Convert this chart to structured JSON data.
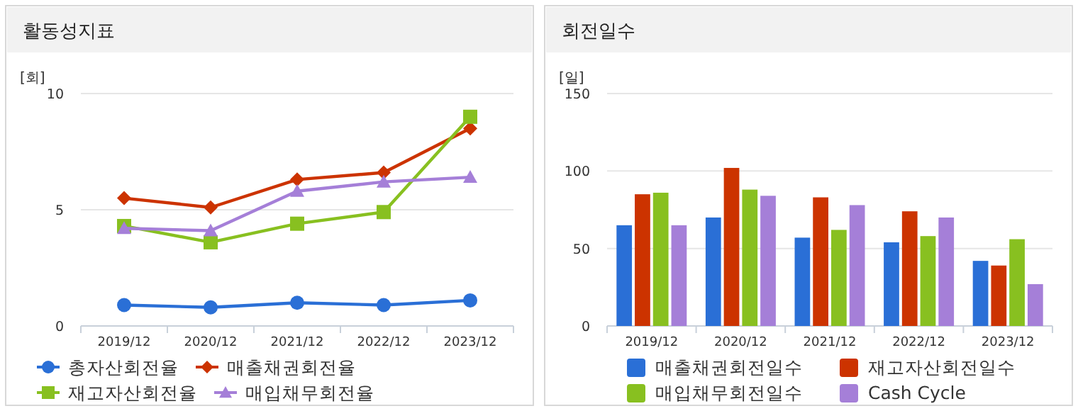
{
  "chart_data": [
    {
      "type": "line",
      "title": "활동성지표",
      "ylabel": "[회]",
      "categories": [
        "2019/12",
        "2020/12",
        "2021/12",
        "2022/12",
        "2023/12"
      ],
      "ylim": [
        0,
        10
      ],
      "yticks": [
        0,
        5,
        10
      ],
      "grid": "y",
      "legend": "bottom",
      "series": [
        {
          "name": "총자산회전율",
          "color": "#2a6fd6",
          "marker": "circle",
          "values": [
            0.9,
            0.8,
            1.0,
            0.9,
            1.1
          ]
        },
        {
          "name": "매출채권회전율",
          "color": "#cc3300",
          "marker": "diamond",
          "values": [
            5.5,
            5.1,
            6.3,
            6.6,
            8.5
          ]
        },
        {
          "name": "재고자산회전율",
          "color": "#88c020",
          "marker": "square",
          "values": [
            4.3,
            3.6,
            4.4,
            4.9,
            9.0
          ]
        },
        {
          "name": "매입채무회전율",
          "color": "#a57fd8",
          "marker": "triangle",
          "values": [
            4.2,
            4.1,
            5.8,
            6.2,
            6.4
          ]
        }
      ]
    },
    {
      "type": "bar",
      "title": "회전일수",
      "ylabel": "[일]",
      "categories": [
        "2019/12",
        "2020/12",
        "2021/12",
        "2022/12",
        "2023/12"
      ],
      "ylim": [
        0,
        150
      ],
      "yticks": [
        0,
        50,
        100,
        150
      ],
      "grid": "y",
      "legend": "bottom",
      "series": [
        {
          "name": "매출채권회전일수",
          "color": "#2a6fd6",
          "values": [
            65,
            70,
            57,
            54,
            42
          ]
        },
        {
          "name": "재고자산회전일수",
          "color": "#cc3300",
          "values": [
            85,
            102,
            83,
            74,
            39
          ]
        },
        {
          "name": "매입채무회전일수",
          "color": "#88c020",
          "values": [
            86,
            88,
            62,
            58,
            56
          ]
        },
        {
          "name": "Cash Cycle",
          "color": "#a57fd8",
          "values": [
            65,
            84,
            78,
            70,
            27
          ]
        }
      ]
    }
  ]
}
